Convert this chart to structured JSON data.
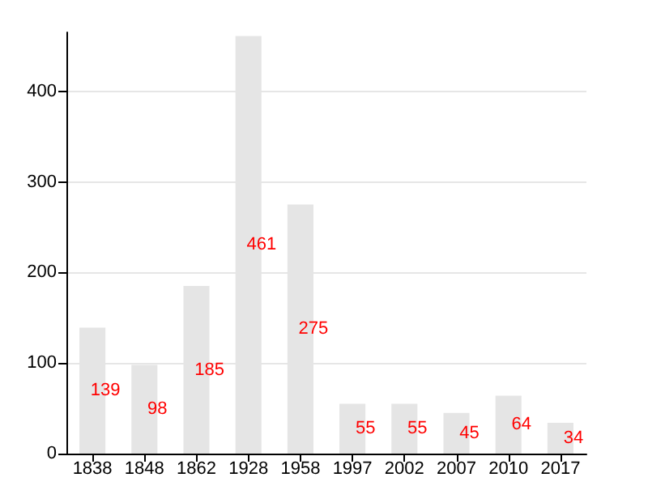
{
  "chart_data": {
    "type": "bar",
    "categories": [
      "1838",
      "1848",
      "1862",
      "1928",
      "1958",
      "1997",
      "2002",
      "2007",
      "2010",
      "2017"
    ],
    "series": [
      {
        "color": "#e5e5e5",
        "values": [
          139,
          98,
          185,
          461,
          275,
          55,
          55,
          45,
          64,
          34
        ]
      }
    ],
    "ylim": [
      0,
      465
    ],
    "yticks": [
      0,
      100,
      200,
      300,
      400
    ],
    "grid": "y",
    "data_labels": true
  }
}
